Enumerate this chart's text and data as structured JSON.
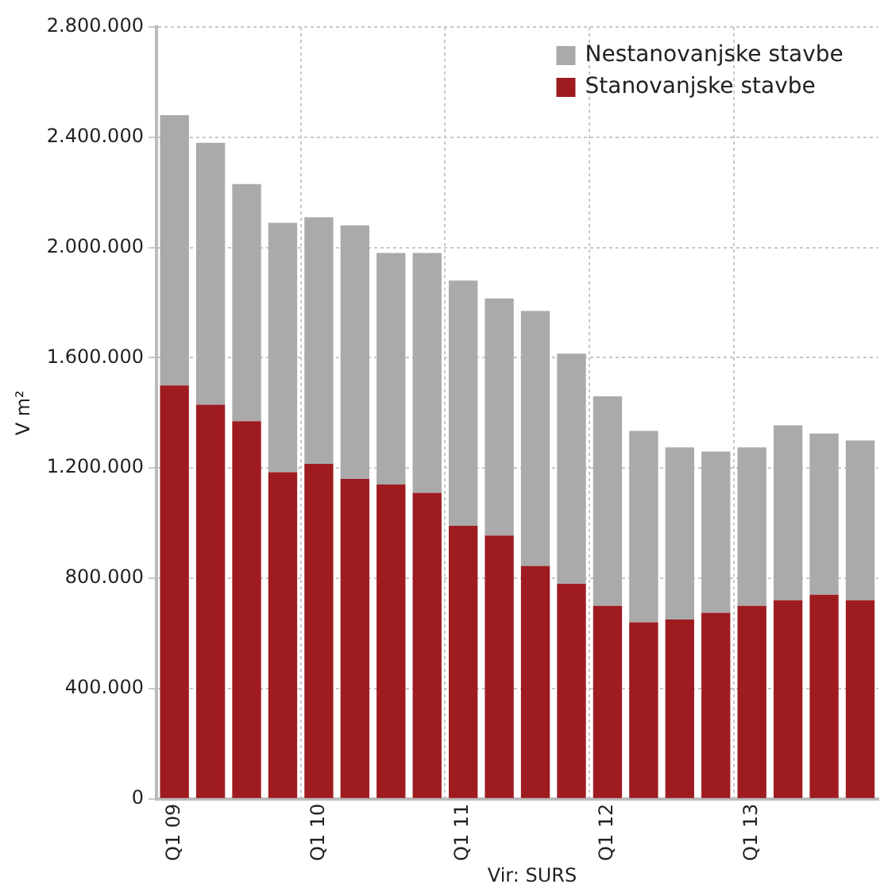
{
  "chart_data": {
    "type": "bar",
    "stacked": true,
    "ylabel": "V m²",
    "categories": [
      "Q1 09",
      null,
      null,
      null,
      "Q1 10",
      null,
      null,
      null,
      "Q1 11",
      null,
      null,
      null,
      "Q1 12",
      null,
      null,
      null,
      "Q1 13",
      null,
      null,
      null
    ],
    "series": [
      {
        "name": "Stanovanjske stavbe",
        "color": "#9e1b20",
        "values": [
          1500000,
          1430000,
          1370000,
          1185000,
          1215000,
          1160000,
          1140000,
          1110000,
          990000,
          955000,
          845000,
          780000,
          700000,
          640000,
          650000,
          675000,
          700000,
          720000,
          740000,
          720000
        ]
      },
      {
        "name": "Nestanovanjske stavbe",
        "color": "#aaaaaa",
        "values": [
          980000,
          950000,
          860000,
          905000,
          895000,
          920000,
          840000,
          870000,
          890000,
          860000,
          925000,
          835000,
          760000,
          695000,
          625000,
          585000,
          575000,
          635000,
          585000,
          580000
        ]
      }
    ],
    "ylim": [
      0,
      2800000
    ],
    "yticks": [
      0,
      {
        "value": 400000,
        "label": "400.000"
      },
      {
        "value": 800000,
        "label": "800.000"
      },
      {
        "value": 1200000,
        "label": "1.200.000"
      },
      {
        "value": 1600000,
        "label": "1.600.000"
      },
      {
        "value": 2000000,
        "label": "2.000.000"
      },
      {
        "value": 2400000,
        "label": "2.400.000"
      },
      {
        "value": 2800000,
        "label": "2.800.000"
      }
    ],
    "grid": true,
    "legend": "top right",
    "annotations": [
      "Vir: SURS"
    ]
  }
}
